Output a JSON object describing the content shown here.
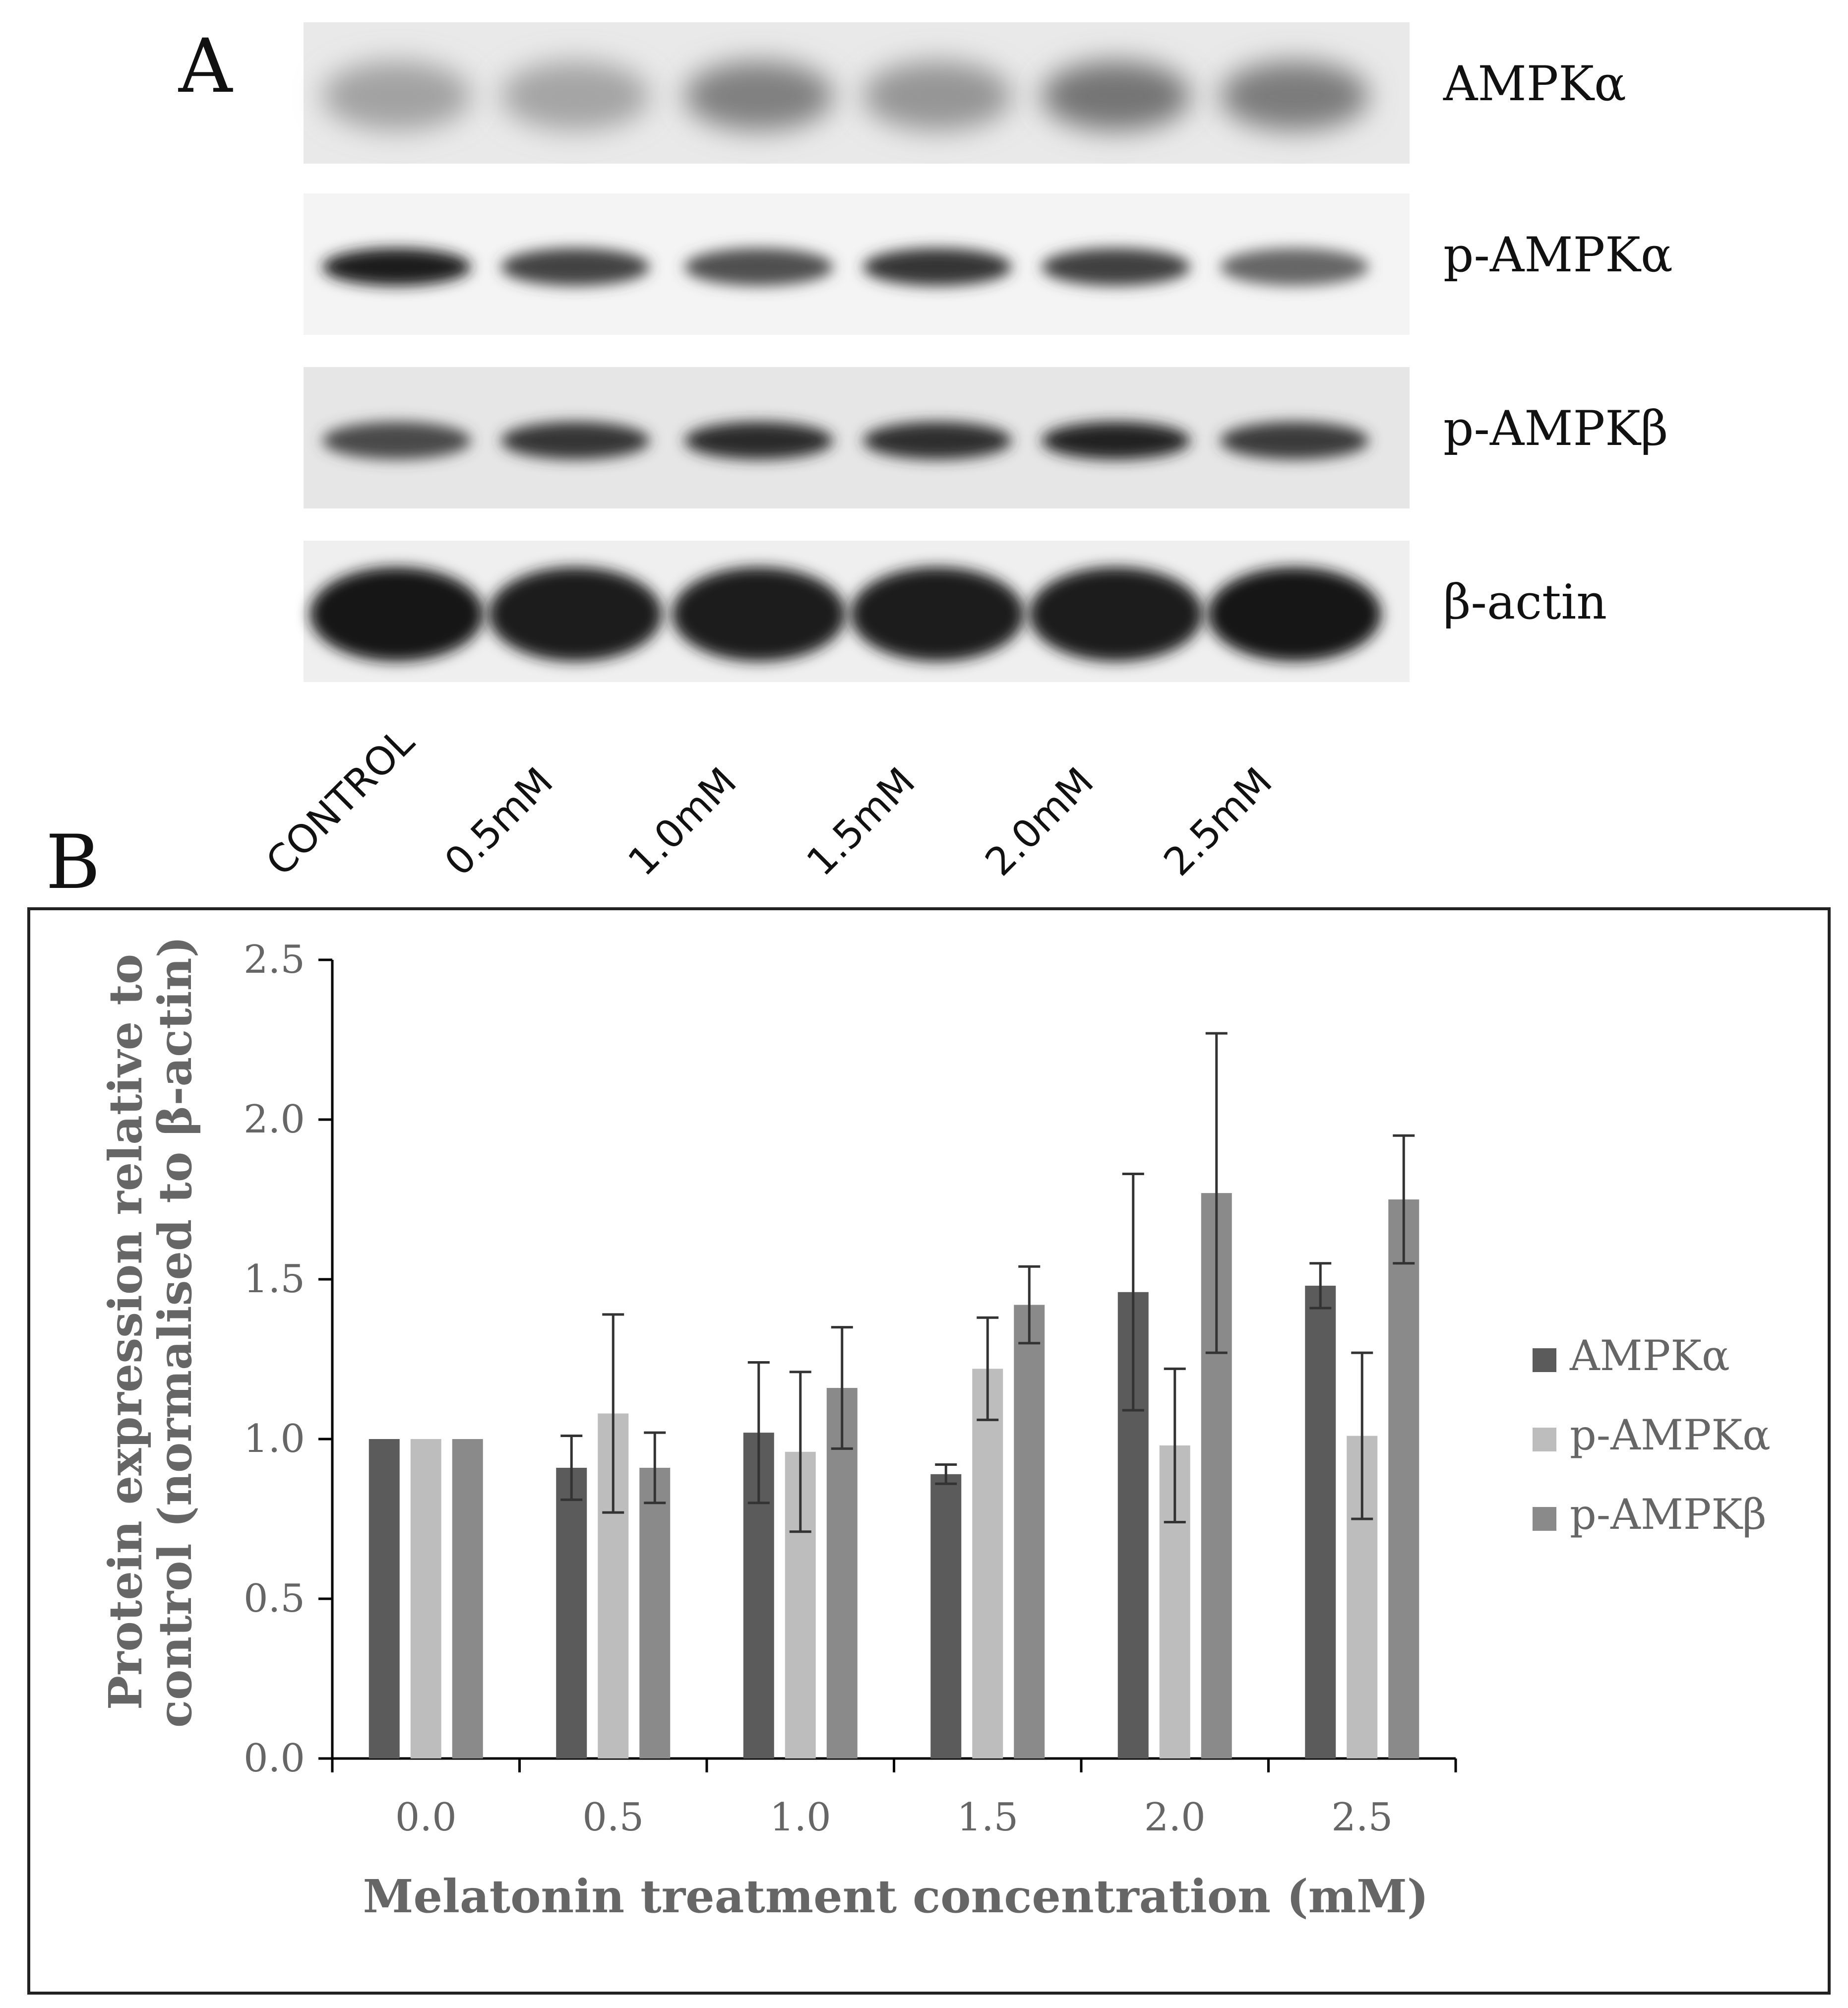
{
  "panel_a": {
    "letter": "A",
    "blots": [
      {
        "label": "AMPKα",
        "background": "#e9e9e9",
        "band_intensity": [
          0.34,
          0.33,
          0.5,
          0.4,
          0.55,
          0.52
        ]
      },
      {
        "label": "p-AMPKα",
        "background": "#f4f4f4",
        "band_intensity": [
          0.95,
          0.78,
          0.72,
          0.85,
          0.8,
          0.62
        ]
      },
      {
        "label": "p-AMPKβ",
        "background": "#e6e6e6",
        "band_intensity": [
          0.75,
          0.85,
          0.9,
          0.88,
          0.93,
          0.82
        ]
      },
      {
        "label": "β-actin",
        "background": "#efefef",
        "band_intensity": [
          1.0,
          0.97,
          0.96,
          0.95,
          0.96,
          1.0
        ]
      }
    ],
    "lanes": [
      "CONTROL",
      "0.5mM",
      "1.0mM",
      "1.5mM",
      "2.0mM",
      "2.5mM"
    ]
  },
  "panel_b": {
    "letter": "B"
  },
  "chart_data": {
    "type": "bar",
    "title": "",
    "xlabel": "Melatonin treatment concentration (mM)",
    "ylabel_lines": [
      "Protein expression relative to",
      "control (normalised to β-actin)"
    ],
    "ylim": [
      0,
      2.5
    ],
    "yticks": [
      "0.0",
      "0.5",
      "1.0",
      "1.5",
      "2.0",
      "2.5"
    ],
    "categories": [
      "0.0",
      "0.5",
      "1.0",
      "1.5",
      "2.0",
      "2.5"
    ],
    "grid": false,
    "legend_position": "right",
    "series": [
      {
        "name": "AMPKα",
        "color": "#5b5b5b",
        "values": [
          1.0,
          0.91,
          1.02,
          0.89,
          1.46,
          1.48
        ],
        "errors": [
          0.0,
          0.1,
          0.22,
          0.03,
          0.37,
          0.07
        ]
      },
      {
        "name": "p-AMPKα",
        "color": "#bdbdbd",
        "values": [
          1.0,
          1.08,
          0.96,
          1.22,
          0.98,
          1.01
        ],
        "errors": [
          0.0,
          0.31,
          0.25,
          0.16,
          0.24,
          0.26
        ]
      },
      {
        "name": "p-AMPKβ",
        "color": "#8a8a8a",
        "values": [
          1.0,
          0.91,
          1.16,
          1.42,
          1.77,
          1.75
        ],
        "errors": [
          0.0,
          0.11,
          0.19,
          0.12,
          0.5,
          0.2
        ]
      }
    ]
  }
}
